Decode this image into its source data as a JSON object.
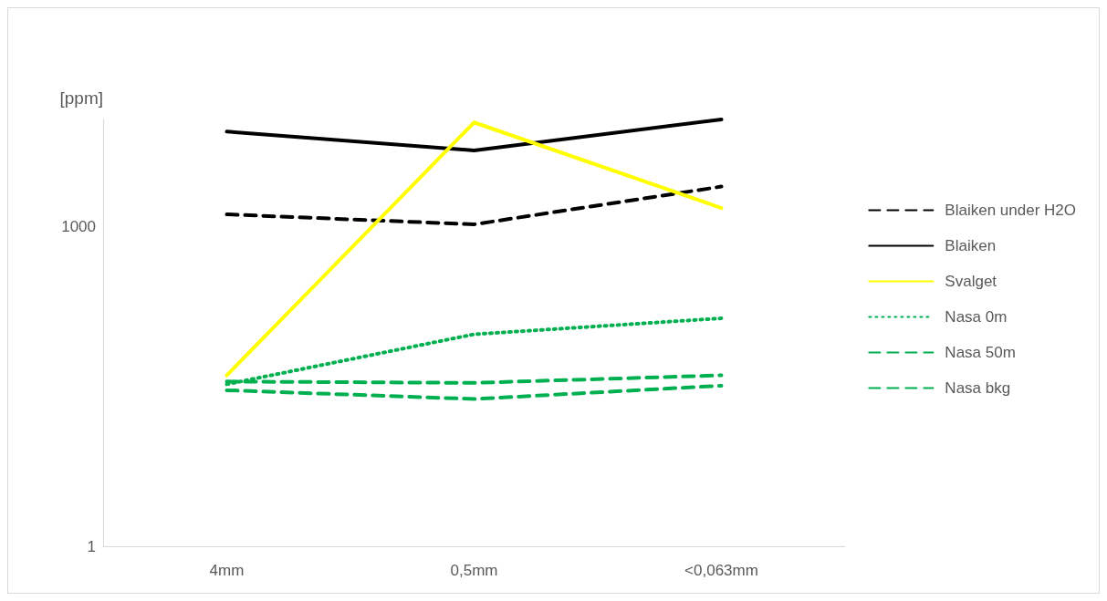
{
  "chart_data": {
    "type": "line",
    "ylabel": "[ppm]",
    "categories": [
      "4mm",
      "0,5mm",
      "<0,063mm"
    ],
    "log": "y",
    "ylim": [
      1,
      10000
    ],
    "yticks": [
      1,
      1000
    ],
    "grid": false,
    "legend": "right",
    "marker": "none",
    "series": [
      {
        "name": "Blaiken under H2O",
        "color": "#000000",
        "line_style": "dashed",
        "values": [
          1290,
          1040,
          2350
        ]
      },
      {
        "name": "Blaiken",
        "color": "#000000",
        "line_style": "solid",
        "values": [
          7700,
          5130,
          10000
        ]
      },
      {
        "name": "Svalget",
        "color": "#ffff00",
        "line_style": "solid",
        "values": [
          40,
          9380,
          1480
        ]
      },
      {
        "name": "Nasa 0m",
        "color": "#00b050",
        "line_style": "dotted",
        "values": [
          33,
          97,
          137
        ]
      },
      {
        "name": "Nasa 50m",
        "color": "#00b050",
        "line_style": "dashed",
        "values": [
          35,
          34,
          40
        ]
      },
      {
        "name": "Nasa bkg",
        "color": "#00b050",
        "line_style": "dashed",
        "values": [
          29,
          24,
          32
        ]
      }
    ]
  }
}
